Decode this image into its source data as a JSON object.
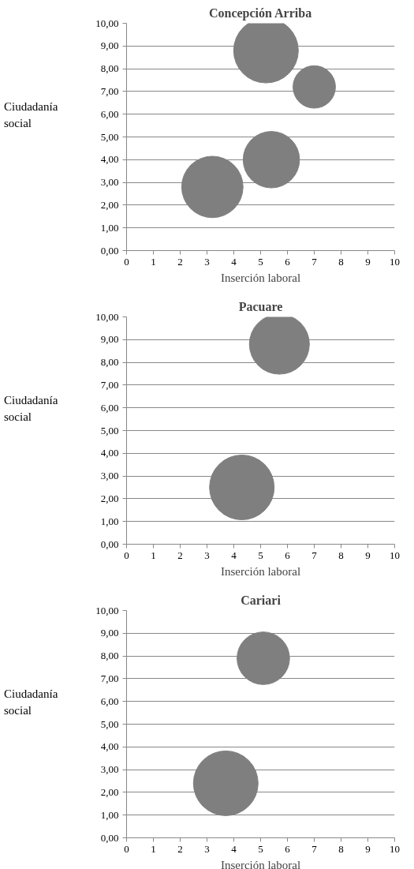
{
  "chart_data": [
    {
      "type": "bubble",
      "title": "Concepción Arriba",
      "xlabel": "Inserción laboral",
      "ylabel": "Ciudadanía social",
      "marker": "circle",
      "grid": "y",
      "xlim": [
        0,
        10
      ],
      "xticks": [
        0,
        1,
        2,
        3,
        4,
        5,
        6,
        7,
        8,
        9,
        10
      ],
      "ylim": [
        0,
        10
      ],
      "yticks": [
        {
          "value": 0,
          "label": "0,00"
        },
        {
          "value": 1,
          "label": "1,00"
        },
        {
          "value": 2,
          "label": "2,00"
        },
        {
          "value": 3,
          "label": "3,00"
        },
        {
          "value": 4,
          "label": "4,00"
        },
        {
          "value": 5,
          "label": "5,00"
        },
        {
          "value": 6,
          "label": "6,00"
        },
        {
          "value": 7,
          "label": "7,00"
        },
        {
          "value": 8,
          "label": "8,00"
        },
        {
          "value": 9,
          "label": "9,00"
        },
        {
          "value": 10,
          "label": "10,00"
        }
      ],
      "series": [
        {
          "color": "#7f7f7f",
          "x": [
            5.2,
            7.0,
            5.4,
            3.2
          ],
          "values": [
            8.8,
            7.2,
            4.0,
            2.8
          ],
          "sizes": [
            1,
            0.43,
            0.76,
            0.9
          ]
        }
      ]
    },
    {
      "type": "bubble",
      "title": "Pacuare",
      "xlabel": "Inserción laboral",
      "ylabel": "Ciudadanía social",
      "marker": "circle",
      "grid": "y",
      "xlim": [
        0,
        10
      ],
      "xticks": [
        0,
        1,
        2,
        3,
        4,
        5,
        6,
        7,
        8,
        9,
        10
      ],
      "ylim": [
        0,
        10
      ],
      "yticks": [
        {
          "value": 0,
          "label": "0,00"
        },
        {
          "value": 1,
          "label": "1,00"
        },
        {
          "value": 2,
          "label": "2,00"
        },
        {
          "value": 3,
          "label": "3,00"
        },
        {
          "value": 4,
          "label": "4,00"
        },
        {
          "value": 5,
          "label": "5,00"
        },
        {
          "value": 6,
          "label": "6,00"
        },
        {
          "value": 7,
          "label": "7,00"
        },
        {
          "value": 8,
          "label": "8,00"
        },
        {
          "value": 9,
          "label": "9,00"
        },
        {
          "value": 10,
          "label": "10,00"
        }
      ],
      "series": [
        {
          "color": "#7f7f7f",
          "x": [
            5.7,
            4.3
          ],
          "values": [
            8.8,
            2.5
          ],
          "sizes": [
            0.86,
            1
          ]
        }
      ]
    },
    {
      "type": "bubble",
      "title": "Cariari",
      "xlabel": "Inserción laboral",
      "ylabel": "Ciudadanía social",
      "marker": "circle",
      "grid": "y",
      "xlim": [
        0,
        10
      ],
      "xticks": [
        0,
        1,
        2,
        3,
        4,
        5,
        6,
        7,
        8,
        9,
        10
      ],
      "ylim": [
        0,
        10
      ],
      "yticks": [
        {
          "value": 0,
          "label": "0,00"
        },
        {
          "value": 1,
          "label": "1,00"
        },
        {
          "value": 2,
          "label": "2,00"
        },
        {
          "value": 3,
          "label": "3,00"
        },
        {
          "value": 4,
          "label": "4,00"
        },
        {
          "value": 5,
          "label": "5,00"
        },
        {
          "value": 6,
          "label": "6,00"
        },
        {
          "value": 7,
          "label": "7,00"
        },
        {
          "value": 8,
          "label": "8,00"
        },
        {
          "value": 9,
          "label": "9,00"
        },
        {
          "value": 10,
          "label": "10,00"
        }
      ],
      "series": [
        {
          "color": "#7f7f7f",
          "x": [
            5.1,
            3.7
          ],
          "values": [
            7.9,
            2.4
          ],
          "sizes": [
            0.66,
            1
          ]
        }
      ]
    }
  ]
}
